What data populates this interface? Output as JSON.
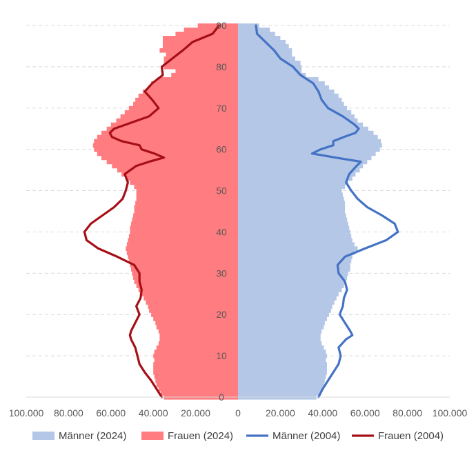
{
  "chart_data": {
    "type": "population-pyramid",
    "x_ticks": [
      "100.000",
      "80.000",
      "60.000",
      "40.000",
      "20.000",
      "0",
      "20.000",
      "40.000",
      "60.000",
      "80.000",
      "100.000"
    ],
    "xlim": [
      -100000,
      100000
    ],
    "y_ticks": [
      "0",
      "10",
      "20",
      "30",
      "40",
      "50",
      "60",
      "70",
      "80",
      "90"
    ],
    "ylim": [
      0,
      90
    ],
    "grid": "horizontal dashed",
    "legend_position": "bottom",
    "series": [
      {
        "name": "Männer (2024)",
        "kind": "bar",
        "side": "right",
        "color": "#b4c7e7",
        "ages": [
          0,
          1,
          2,
          3,
          4,
          5,
          6,
          7,
          8,
          9,
          10,
          11,
          12,
          13,
          14,
          15,
          16,
          17,
          18,
          19,
          20,
          21,
          22,
          23,
          24,
          25,
          26,
          27,
          28,
          29,
          30,
          31,
          32,
          33,
          34,
          35,
          36,
          37,
          38,
          39,
          40,
          41,
          42,
          43,
          44,
          45,
          46,
          47,
          48,
          49,
          50,
          51,
          52,
          53,
          54,
          55,
          56,
          57,
          58,
          59,
          60,
          61,
          62,
          63,
          64,
          65,
          66,
          67,
          68,
          69,
          70,
          71,
          72,
          73,
          74,
          75,
          76,
          77,
          78,
          79,
          80,
          81,
          82,
          83,
          84,
          85,
          86,
          87,
          88,
          89,
          90
        ],
        "values": [
          37000,
          38500,
          39500,
          40500,
          41000,
          41500,
          42000,
          42000,
          42000,
          41500,
          42000,
          41500,
          40500,
          39500,
          39000,
          39000,
          39500,
          40500,
          41000,
          42000,
          43000,
          44000,
          44500,
          45500,
          46500,
          47500,
          49000,
          50000,
          51000,
          51500,
          52000,
          53000,
          53000,
          53500,
          54000,
          55000,
          56500,
          55000,
          54000,
          53500,
          53000,
          52500,
          52000,
          51500,
          51000,
          50500,
          50500,
          50500,
          50000,
          49500,
          49000,
          50500,
          52000,
          54000,
          55500,
          57500,
          59000,
          61000,
          63000,
          65000,
          67000,
          68000,
          67500,
          66000,
          64000,
          61500,
          59000,
          56500,
          55000,
          53500,
          51500,
          50000,
          49000,
          47500,
          45500,
          43000,
          41000,
          38000,
          32000,
          30000,
          30000,
          29500,
          27000,
          25500,
          25500,
          24000,
          22500,
          20000,
          17500,
          15000,
          10000
        ]
      },
      {
        "name": "Frauen (2024)",
        "kind": "bar",
        "side": "left",
        "color": "#ff7c80",
        "ages": [
          0,
          1,
          2,
          3,
          4,
          5,
          6,
          7,
          8,
          9,
          10,
          11,
          12,
          13,
          14,
          15,
          16,
          17,
          18,
          19,
          20,
          21,
          22,
          23,
          24,
          25,
          26,
          27,
          28,
          29,
          30,
          31,
          32,
          33,
          34,
          35,
          36,
          37,
          38,
          39,
          40,
          41,
          42,
          43,
          44,
          45,
          46,
          47,
          48,
          49,
          50,
          51,
          52,
          53,
          54,
          55,
          56,
          57,
          58,
          59,
          60,
          61,
          62,
          63,
          64,
          65,
          66,
          67,
          68,
          69,
          70,
          71,
          72,
          73,
          74,
          75,
          76,
          77,
          78,
          79,
          80,
          81,
          82,
          83,
          84,
          85,
          86,
          87,
          88,
          89,
          90
        ],
        "values": [
          35000,
          36500,
          37500,
          38500,
          39000,
          39500,
          40000,
          40000,
          40000,
          39500,
          40000,
          39500,
          38500,
          37500,
          37000,
          37000,
          37500,
          38500,
          39000,
          40000,
          41000,
          42000,
          42500,
          43500,
          44500,
          45500,
          47000,
          48000,
          49000,
          49500,
          50000,
          50500,
          51000,
          51500,
          52000,
          52500,
          53000,
          52500,
          52000,
          51500,
          51000,
          51000,
          50500,
          50000,
          49500,
          49000,
          49000,
          48500,
          48000,
          48000,
          48000,
          49000,
          51000,
          53000,
          55000,
          57000,
          59500,
          62000,
          64500,
          66500,
          68000,
          68500,
          68000,
          66500,
          64500,
          62000,
          60000,
          57500,
          55500,
          53500,
          51500,
          49500,
          48500,
          47000,
          45000,
          42500,
          41000,
          38000,
          31500,
          29500,
          35000,
          35000,
          35000,
          34000,
          37000,
          35500,
          35500,
          35500,
          29500,
          25500,
          19000
        ]
      },
      {
        "name": "Männer (2004)",
        "kind": "line",
        "side": "right",
        "color": "#4472c4",
        "ages": [
          0,
          2,
          4,
          6,
          8,
          10,
          12,
          14,
          15,
          16,
          18,
          20,
          22,
          24,
          26,
          28,
          30,
          32,
          34,
          36,
          38,
          40,
          42,
          44,
          46,
          48,
          50,
          52,
          54,
          56,
          57,
          58,
          59,
          60,
          61,
          62,
          63,
          64,
          65,
          66,
          68,
          70,
          72,
          74,
          76,
          78,
          80,
          82,
          84,
          86,
          88,
          90
        ],
        "values": [
          38000,
          40000,
          42500,
          45000,
          47500,
          48500,
          47500,
          51000,
          54000,
          53000,
          50500,
          48000,
          49500,
          50000,
          51500,
          50500,
          47500,
          47000,
          50500,
          60000,
          70000,
          75500,
          74000,
          68000,
          61000,
          56500,
          53500,
          51000,
          52500,
          56000,
          58000,
          46000,
          35000,
          39000,
          45000,
          45000,
          50000,
          55500,
          57000,
          55000,
          49500,
          42500,
          39500,
          38000,
          35500,
          29500,
          26000,
          20000,
          17000,
          13000,
          9000,
          8500
        ]
      },
      {
        "name": "Frauen (2004)",
        "kind": "line",
        "side": "left",
        "color": "#a50f15",
        "ages": [
          0,
          2,
          4,
          6,
          8,
          10,
          12,
          14,
          15,
          16,
          18,
          20,
          22,
          24,
          26,
          28,
          30,
          32,
          34,
          36,
          38,
          40,
          42,
          44,
          46,
          48,
          50,
          52,
          54,
          56,
          57,
          58,
          59,
          60,
          61,
          62,
          63,
          64,
          65,
          66,
          68,
          70,
          72,
          74,
          76,
          78,
          80,
          82,
          84,
          86,
          88,
          90
        ],
        "values": [
          36000,
          38500,
          41000,
          44000,
          46500,
          47500,
          48500,
          50500,
          51000,
          50500,
          48500,
          46500,
          48000,
          46000,
          45500,
          46500,
          46500,
          49000,
          57000,
          66000,
          71500,
          72500,
          69500,
          64000,
          58500,
          54500,
          53000,
          52000,
          53500,
          48000,
          42000,
          35000,
          39500,
          45500,
          46500,
          55000,
          59500,
          60500,
          58500,
          53000,
          42000,
          37500,
          40500,
          44000,
          40500,
          35500,
          36000,
          31000,
          26000,
          21500,
          12000,
          9000
        ]
      }
    ]
  }
}
